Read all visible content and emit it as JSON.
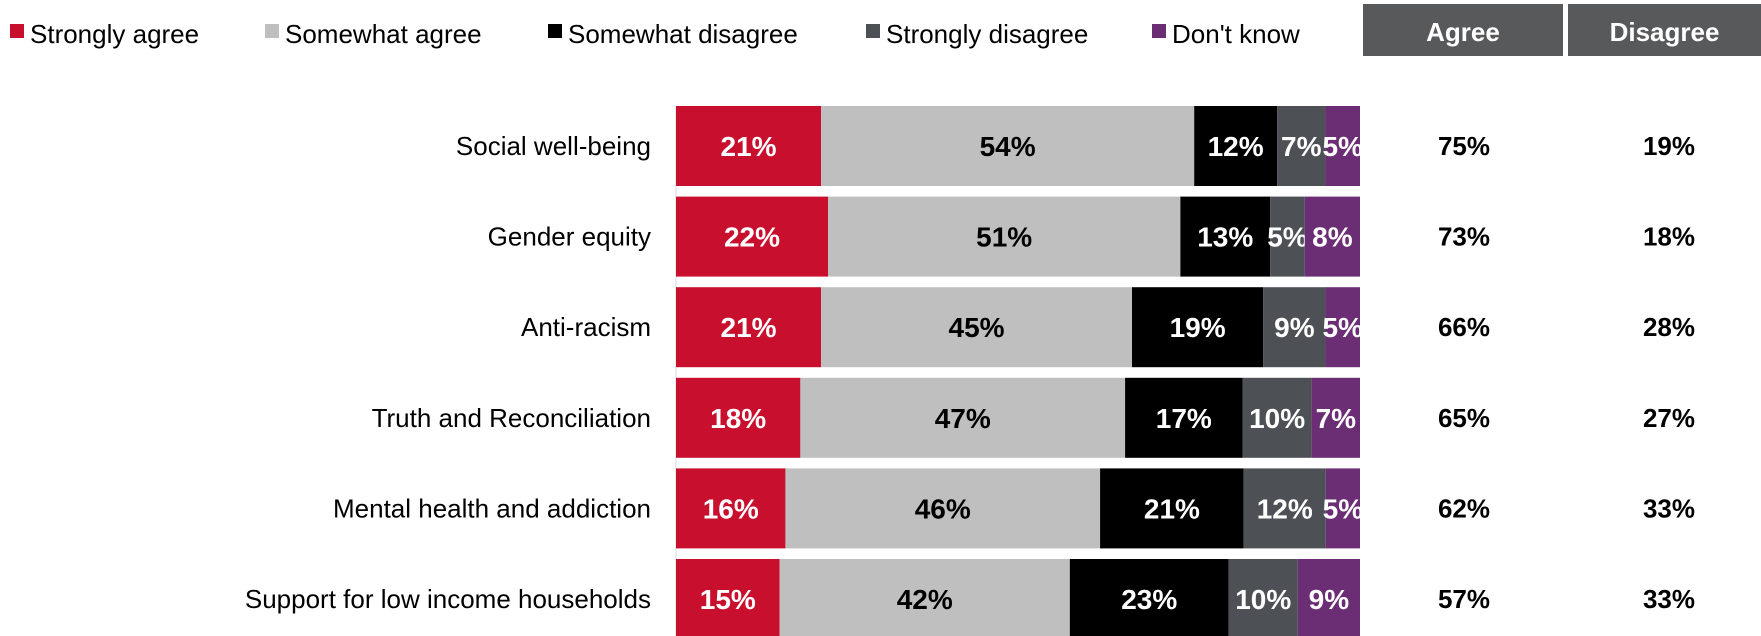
{
  "chart_data": {
    "type": "bar",
    "orientation": "horizontal",
    "stacked": true,
    "legend_position": "top",
    "categories": [
      "Social well-being",
      "Gender equity",
      "Anti-racism",
      "Truth and Reconciliation",
      "Mental health and addiction",
      "Support for low income households"
    ],
    "series": [
      {
        "name": "Strongly agree",
        "color": "#c8102e",
        "label_color": "#ffffff",
        "values": [
          21,
          22,
          21,
          18,
          16,
          15
        ]
      },
      {
        "name": "Somewhat agree",
        "color": "#bfbfbf",
        "label_color": "#000000",
        "values": [
          54,
          51,
          45,
          47,
          46,
          42
        ]
      },
      {
        "name": "Somewhat disagree",
        "color": "#000000",
        "label_color": "#ffffff",
        "values": [
          12,
          13,
          19,
          17,
          21,
          23
        ]
      },
      {
        "name": "Strongly disagree",
        "color": "#4d5156",
        "label_color": "#ffffff",
        "values": [
          7,
          5,
          9,
          10,
          12,
          10
        ]
      },
      {
        "name": "Don't know",
        "color": "#6b2d73",
        "label_color": "#ffffff",
        "values": [
          5,
          8,
          5,
          7,
          5,
          9
        ]
      }
    ],
    "summary_columns": [
      {
        "header": "Agree",
        "header_color": "#58595b",
        "values": [
          "75%",
          "73%",
          "66%",
          "65%",
          "62%",
          "57%"
        ]
      },
      {
        "header": "Disagree",
        "header_color": "#58595b",
        "values": [
          "19%",
          "18%",
          "28%",
          "27%",
          "33%",
          "33%"
        ]
      }
    ],
    "value_suffix": "%"
  }
}
